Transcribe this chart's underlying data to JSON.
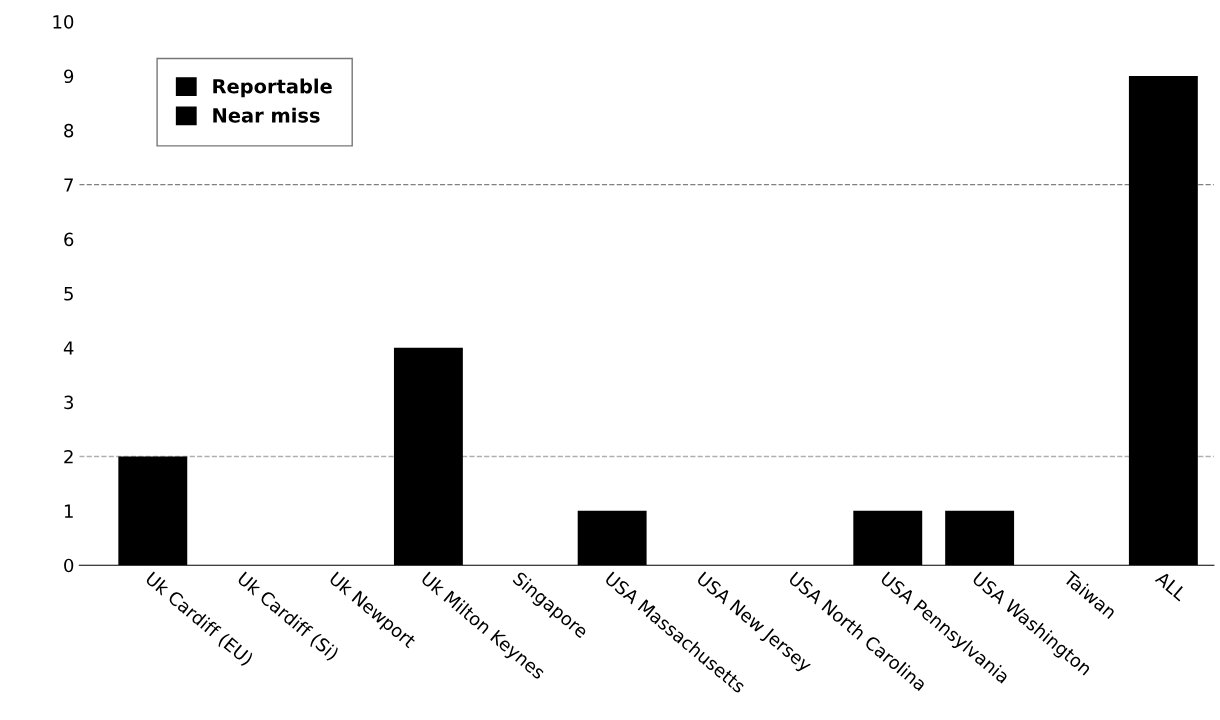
{
  "chart_data": {
    "type": "bar",
    "categories": [
      "Uk Cardiff (EU)",
      "Uk Cardiff (Si)",
      "Uk Newport",
      "Uk Milton Keynes",
      "Singapore",
      "USA Massachusetts",
      "USA New Jersey",
      "USA North Carolina",
      "USA Pennsylvania",
      "USA Washington",
      "Taiwan",
      "ALL"
    ],
    "series": [
      {
        "name": "Reportable",
        "color": "#000000",
        "values": [
          2,
          0,
          0,
          4,
          0,
          1,
          0,
          0,
          1,
          1,
          0,
          9
        ]
      },
      {
        "name": "Near miss",
        "color": "#000000",
        "values": [
          0,
          0,
          0,
          0,
          0,
          0,
          0,
          0,
          0,
          0,
          0,
          0
        ]
      }
    ],
    "ylim": [
      0,
      10
    ],
    "yticks": [
      0,
      1,
      2,
      3,
      4,
      5,
      6,
      7,
      8,
      9,
      10
    ],
    "ref_lines": [
      {
        "axis": "y",
        "value": 7,
        "color": "#808080",
        "line_style": "dashed"
      },
      {
        "axis": "y",
        "value": 2,
        "color": "#b0b0b0",
        "line_style": "dashed"
      }
    ],
    "grid": false,
    "legend": "top left"
  }
}
